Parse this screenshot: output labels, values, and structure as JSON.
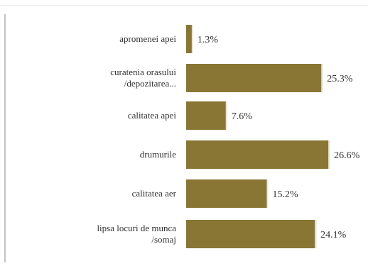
{
  "chart_data": {
    "type": "bar",
    "orientation": "horizontal",
    "categories": [
      "apromenei apei",
      "curatenia orasului/depozitarea...",
      "calitatea apei",
      "drumurile",
      "calitatea aer",
      "lipsa locuri de munca/somaj"
    ],
    "value_labels": [
      "1.3%",
      "25.3%",
      "7.6%",
      "26.6%",
      "15.2%",
      "24.1%"
    ],
    "values": [
      1.3,
      25.3,
      7.6,
      26.6,
      15.2,
      24.1
    ],
    "xlim": [
      0,
      30
    ],
    "unit": "%",
    "grid": false,
    "legend": "none",
    "bar_color": "#8a7634",
    "bar_highlight": "#f1ead2"
  }
}
